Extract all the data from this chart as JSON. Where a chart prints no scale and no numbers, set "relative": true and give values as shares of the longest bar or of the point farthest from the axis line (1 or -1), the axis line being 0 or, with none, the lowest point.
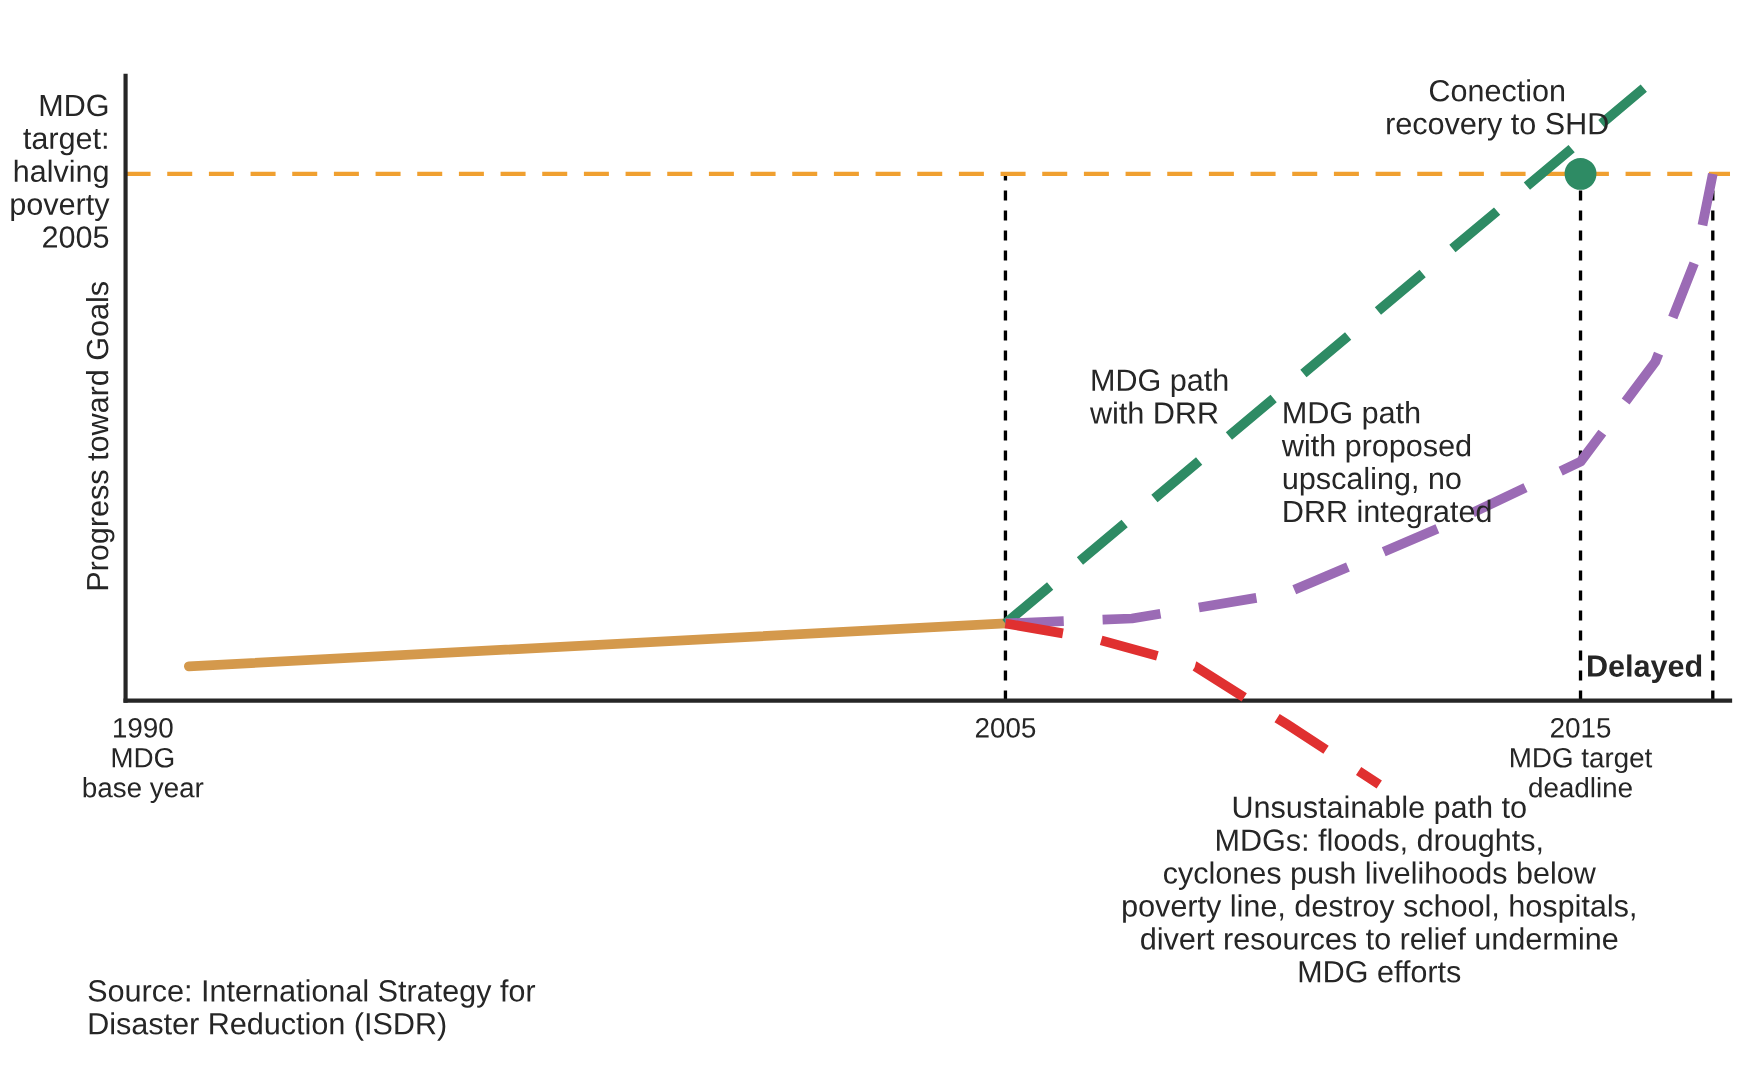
{
  "chart_data": {
    "type": "line",
    "relative": true,
    "ylabel": "Progress toward Goals",
    "tick_labels": "x",
    "grid": false,
    "legend": false,
    "marker": "none",
    "xlim": [
      1989.7,
      2017.6
    ],
    "xticks": [
      {
        "value": 1990,
        "label": "1990\nMDG\nbase year"
      },
      2005,
      {
        "value": 2015,
        "label": "2015\nMDG target\ndeadline"
      }
    ],
    "series": [
      {
        "color": "#d4994c",
        "line_style": "solid",
        "x": [
          1990.8,
          2005
        ],
        "values": [
          0.056,
          0.126
        ]
      },
      {
        "color": "#2e8b64",
        "line_style": "dashed",
        "x": [
          2005,
          2016.1
        ],
        "values": [
          0.126,
          1.0
        ]
      },
      {
        "color": "#9b6bb5",
        "line_style": "dashed",
        "x": [
          2005,
          2007.2,
          2009.9,
          2012.7,
          2015,
          2016.3,
          2017.0,
          2017.3
        ],
        "values": [
          0.126,
          0.134,
          0.176,
          0.288,
          0.39,
          0.553,
          0.72,
          0.86
        ]
      },
      {
        "color": "#e03030",
        "line_style": "dashed",
        "x": [
          2005,
          2006.6,
          2008.3,
          2009.9,
          2011.5
        ],
        "values": [
          0.126,
          0.1,
          0.056,
          -0.039,
          -0.137
        ]
      },
      {
        "type": "scatter",
        "color": "#2e8b64",
        "marker": "circle",
        "x": [
          2015
        ],
        "values": [
          0.86
        ]
      }
    ],
    "ref_lines": [
      {
        "axis": "y",
        "value": 0.86,
        "label": "MDG\ntarget:\nhalving\npoverty\n2005",
        "color": "#f0a030",
        "line_style": "dashed"
      },
      {
        "axis": "x",
        "value": 2005,
        "color": "#000000",
        "line_style": "dashed"
      },
      {
        "axis": "x",
        "value": 2015,
        "color": "#000000",
        "line_style": "dashed"
      },
      {
        "axis": "x",
        "value": 2017.3,
        "color": "#000000",
        "line_style": "dashed"
      }
    ],
    "annotations": [
      {
        "text": "Conection\nrecovery to SHD",
        "x": 2015,
        "y": 0.86
      },
      "MDG path\nwith DRR",
      "MDG path\nwith proposed\nupscaling, no\nDRR integrated",
      {
        "text": "Unsustainable path to\nMDGs: floods, droughts,\ncyclones push livelihoods below\npoverty line, destroy school, hospitals,\ndivert resources to relief undermine\nMDG efforts",
        "x": 2011.5,
        "y": -0.137
      },
      "Delayed",
      "Source: International Strategy for\nDisaster Reduction (ISDR)"
    ]
  }
}
